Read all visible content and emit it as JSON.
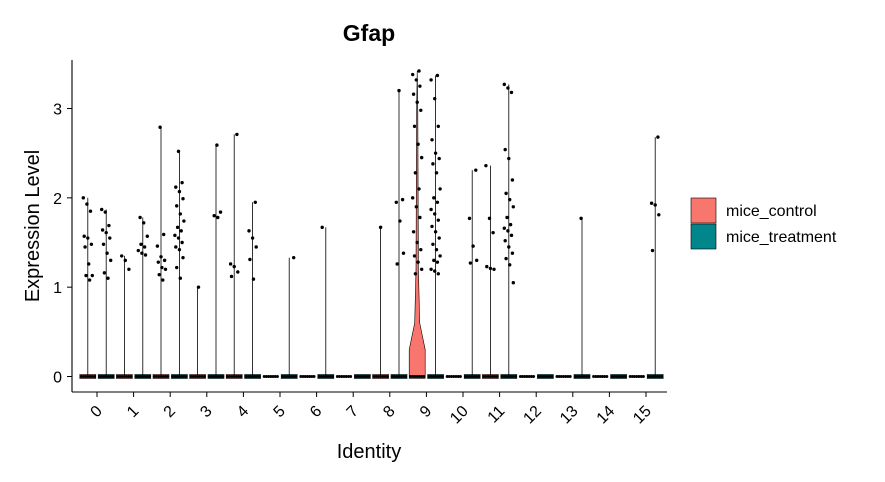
{
  "chart_data": {
    "type": "violin",
    "title": "Gfap",
    "xlabel": "Identity",
    "ylabel": "Expression Level",
    "categories": [
      "0",
      "1",
      "2",
      "3",
      "4",
      "5",
      "6",
      "7",
      "8",
      "9",
      "10",
      "11",
      "12",
      "13",
      "14",
      "15"
    ],
    "ylim": [
      -0.15,
      3.55
    ],
    "yticks": [
      0,
      1,
      2,
      3
    ],
    "grid": false,
    "legend_position": "right",
    "series": [
      {
        "name": "mice_control",
        "color": "#F8766D"
      },
      {
        "name": "mice_treatment",
        "color": "#00868B"
      }
    ],
    "groups": [
      {
        "cluster": "0",
        "series": "mice_control",
        "max": 2.0,
        "points": [
          2.0,
          1.93,
          1.85,
          1.57,
          1.55,
          1.48,
          1.45,
          1.26,
          1.13,
          1.13,
          1.08
        ]
      },
      {
        "cluster": "0",
        "series": "mice_treatment",
        "max": 1.87,
        "points": [
          1.87,
          1.84,
          1.69,
          1.64,
          1.61,
          1.55,
          1.48,
          1.38,
          1.3,
          1.16,
          1.1
        ]
      },
      {
        "cluster": "1",
        "series": "mice_control",
        "max": 1.35,
        "points": [
          1.35,
          1.3,
          1.2
        ]
      },
      {
        "cluster": "1",
        "series": "mice_treatment",
        "max": 1.78,
        "points": [
          1.78,
          1.72,
          1.57,
          1.48,
          1.45,
          1.41,
          1.38,
          1.36
        ]
      },
      {
        "cluster": "2",
        "series": "mice_control",
        "max": 2.79,
        "points": [
          2.79,
          1.59,
          1.46,
          1.34,
          1.3,
          1.28,
          1.22,
          1.2,
          1.14,
          1.08
        ]
      },
      {
        "cluster": "2",
        "series": "mice_treatment",
        "max": 2.52,
        "points": [
          2.52,
          2.17,
          2.12,
          2.07,
          1.99,
          1.91,
          1.82,
          1.74,
          1.67,
          1.63,
          1.58,
          1.55,
          1.5,
          1.45,
          1.42,
          1.33,
          1.22,
          1.1
        ]
      },
      {
        "cluster": "3",
        "series": "mice_control",
        "max": 1.0,
        "points": [
          1.0
        ]
      },
      {
        "cluster": "3",
        "series": "mice_treatment",
        "max": 2.59,
        "points": [
          2.59,
          1.84,
          1.8,
          1.78
        ]
      },
      {
        "cluster": "4",
        "series": "mice_control",
        "max": 2.71,
        "points": [
          2.71,
          1.26,
          1.23,
          1.17,
          1.12
        ]
      },
      {
        "cluster": "4",
        "series": "mice_treatment",
        "max": 1.95,
        "points": [
          1.95,
          1.63,
          1.55,
          1.45,
          1.31,
          1.09
        ]
      },
      {
        "cluster": "5",
        "series": "mice_treatment",
        "max": 1.33,
        "points": [
          1.33
        ]
      },
      {
        "cluster": "6",
        "series": "mice_treatment",
        "max": 1.67,
        "points": [
          1.67
        ]
      },
      {
        "cluster": "7",
        "series": "mice_treatment",
        "max": 0,
        "points": []
      },
      {
        "cluster": "8",
        "series": "mice_control",
        "max": 1.67,
        "points": [
          1.67
        ]
      },
      {
        "cluster": "8",
        "series": "mice_treatment",
        "max": 3.2,
        "points": [
          3.2,
          1.98,
          1.95,
          1.74,
          1.38,
          1.26
        ]
      },
      {
        "cluster": "9",
        "series": "mice_control",
        "max": 3.42,
        "violin": true,
        "points": [
          3.42,
          3.38,
          3.32,
          3.25,
          3.16,
          3.07,
          2.98,
          2.8,
          2.6,
          2.45,
          2.28,
          2.1,
          2.0,
          1.9,
          1.78,
          1.62,
          1.5,
          1.42,
          1.35,
          1.28,
          1.2,
          1.15
        ]
      },
      {
        "cluster": "9",
        "series": "mice_treatment",
        "max": 3.37,
        "points": [
          3.37,
          3.32,
          3.11,
          2.8,
          2.65,
          2.5,
          2.44,
          2.38,
          2.28,
          2.1,
          2.0,
          1.95,
          1.87,
          1.82,
          1.75,
          1.68,
          1.62,
          1.55,
          1.48,
          1.42,
          1.35,
          1.3,
          1.28,
          1.2,
          1.18,
          1.15
        ]
      },
      {
        "cluster": "10",
        "series": "mice_treatment",
        "max": 2.31,
        "points": [
          2.31,
          1.77,
          1.46,
          1.3,
          1.27
        ]
      },
      {
        "cluster": "11",
        "series": "mice_control",
        "max": 2.36,
        "points": [
          2.36,
          1.77,
          1.61,
          1.23,
          1.21,
          1.2
        ]
      },
      {
        "cluster": "11",
        "series": "mice_treatment",
        "max": 3.27,
        "points": [
          3.27,
          3.23,
          3.18,
          2.54,
          2.44,
          2.2,
          2.05,
          1.98,
          1.9,
          1.78,
          1.7,
          1.66,
          1.63,
          1.58,
          1.52,
          1.45,
          1.38,
          1.32,
          1.25,
          1.05
        ]
      },
      {
        "cluster": "12",
        "series": "mice_treatment",
        "max": 0,
        "points": []
      },
      {
        "cluster": "13",
        "series": "mice_treatment",
        "max": 1.77,
        "points": [
          1.77
        ]
      },
      {
        "cluster": "14",
        "series": "mice_treatment",
        "max": 0,
        "points": []
      },
      {
        "cluster": "15",
        "series": "mice_treatment",
        "max": 2.68,
        "points": [
          2.68,
          1.94,
          1.92,
          1.81,
          1.41
        ]
      }
    ]
  }
}
